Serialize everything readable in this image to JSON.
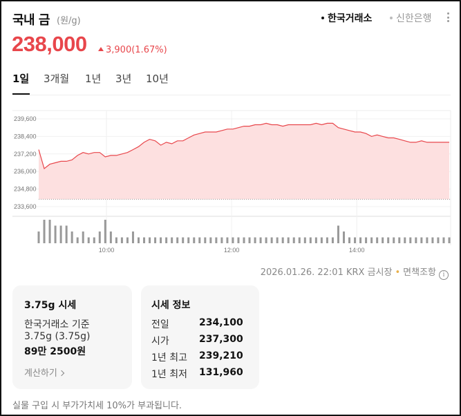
{
  "header": {
    "title": "국내 금",
    "unit": "(원/g)",
    "sources": [
      {
        "label": "한국거래소",
        "active": true
      },
      {
        "label": "신한은행",
        "active": false
      }
    ]
  },
  "price": {
    "current": "238,000",
    "change": "3,900",
    "change_pct": "(1.67%)",
    "direction": "up",
    "color": "#e8464b"
  },
  "tabs": [
    "1일",
    "3개월",
    "1년",
    "3년",
    "10년"
  ],
  "active_tab": "1일",
  "chart_data": {
    "type": "area",
    "y_ticks": [
      "239,600",
      "238,400",
      "237,200",
      "236,000",
      "234,800",
      "233,600"
    ],
    "ylim": [
      233600,
      239600
    ],
    "x_ticks": [
      "10:00",
      "12:00",
      "14:00"
    ],
    "x_range": [
      "08:55",
      "15:30"
    ],
    "baseline": 234100,
    "line_color": "#e8464b",
    "fill_color": "#fde0e0",
    "series": [
      {
        "values": [
          237500,
          236200,
          236500,
          236600,
          236700,
          236700,
          236800,
          237100,
          237300,
          237200,
          237300,
          237300,
          237000,
          237100,
          237100,
          237200,
          237300,
          237500,
          237700,
          238000,
          238200,
          238100,
          237800,
          238000,
          237900,
          238100,
          238100,
          238300,
          238500,
          238600,
          238700,
          238700,
          238700,
          238800,
          238900,
          238900,
          239000,
          239100,
          239100,
          239200,
          239200,
          239300,
          239200,
          239200,
          239100,
          239200,
          239200,
          239200,
          239200,
          239200,
          239300,
          239200,
          239300,
          239300,
          239000,
          238900,
          238800,
          238700,
          238700,
          238600,
          238400,
          238500,
          238400,
          238300,
          238300,
          238200,
          238100,
          238000,
          238000,
          238100,
          238000,
          238000,
          238000,
          238000,
          238000
        ]
      }
    ],
    "volume": [
      2,
      4,
      4,
      3,
      3,
      3,
      2,
      1,
      2,
      1,
      1,
      2,
      4,
      2,
      1,
      1,
      1,
      2,
      1,
      1,
      1,
      1,
      1,
      1,
      1,
      1,
      1,
      1,
      1,
      1,
      1,
      1,
      1,
      1,
      1,
      1,
      1,
      1,
      1,
      1,
      1,
      1,
      1,
      1,
      1,
      1,
      1,
      1,
      1,
      1,
      1,
      1,
      1,
      1,
      3,
      2,
      1,
      1,
      1,
      1,
      1,
      1,
      1,
      1,
      1,
      1,
      1,
      1,
      1,
      1,
      1,
      1,
      1,
      1,
      1
    ]
  },
  "meta": {
    "timestamp": "2026.01.26. 22:01",
    "market": "KRX 금시장",
    "separator": "•",
    "disclaimer": "면책조항",
    "info_icon": "i"
  },
  "card_price": {
    "title": "3.75g 시세",
    "basis": "한국거래소 기준",
    "weight": "3.75g (3.75g)",
    "amount": "89만 2500원",
    "calc_link": "계산하기"
  },
  "card_info": {
    "title": "시세 정보",
    "rows": [
      {
        "label": "전일",
        "value": "234,100"
      },
      {
        "label": "시가",
        "value": "237,300"
      },
      {
        "label": "1년 최고",
        "value": "239,210"
      },
      {
        "label": "1년 최저",
        "value": "131,960"
      }
    ]
  },
  "footnote": "실물 구입 시 부가가치세 10%가 부과됩니다."
}
